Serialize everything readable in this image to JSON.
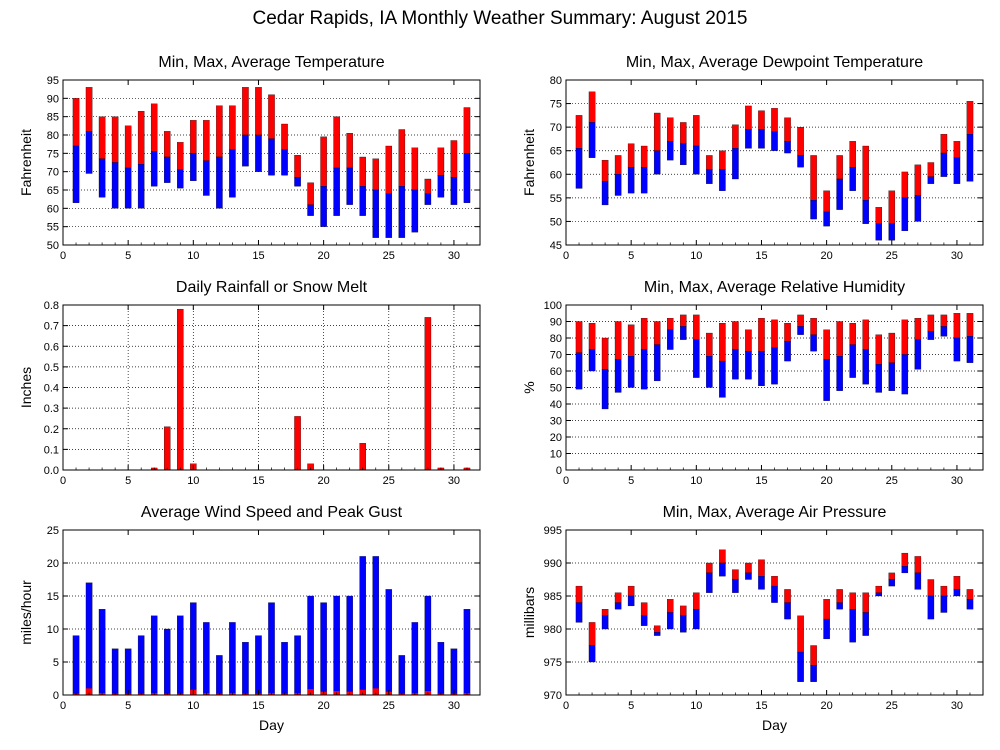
{
  "title": "Cedar Rapids, IA Monthly Weather Summary: August 2015",
  "colors": {
    "red": "#ff0000",
    "blue": "#0000ff",
    "grid": "#000000",
    "background": "#ffffff"
  },
  "chart_data": [
    {
      "id": "temperature",
      "type": "bar",
      "title": "Min, Max, Average Temperature",
      "xlabel": "",
      "ylabel": "Fahrenheit",
      "ylim": [
        50,
        95
      ],
      "yticks": [
        50,
        55,
        60,
        65,
        70,
        75,
        80,
        85,
        90,
        95
      ],
      "xlim": [
        0,
        32
      ],
      "xticks": [
        0,
        5,
        10,
        15,
        20,
        25,
        30
      ],
      "grid": "horizontal",
      "x": [
        1,
        2,
        3,
        4,
        5,
        6,
        7,
        8,
        9,
        10,
        11,
        12,
        13,
        14,
        15,
        16,
        17,
        18,
        19,
        20,
        21,
        22,
        23,
        24,
        25,
        26,
        27,
        28,
        29,
        30,
        31
      ],
      "series": [
        {
          "role": "min",
          "values": [
            61.5,
            69.5,
            63,
            60,
            60,
            60,
            66,
            67,
            65.5,
            67.5,
            63.5,
            60,
            63,
            71.5,
            70,
            69,
            69,
            66,
            58,
            55,
            58,
            61,
            58,
            52,
            52,
            52,
            53.5,
            61,
            63,
            61,
            61.5
          ]
        },
        {
          "role": "avg",
          "values": [
            77,
            81,
            73.5,
            72.5,
            71,
            72,
            75.5,
            74,
            70.5,
            75,
            73,
            74,
            76,
            80,
            80,
            79,
            76,
            68.5,
            61,
            66,
            71,
            71,
            66,
            65,
            64,
            66,
            65,
            64,
            69,
            68.5,
            75
          ]
        },
        {
          "role": "max",
          "values": [
            90,
            93,
            85,
            85,
            82.5,
            86.5,
            88.5,
            81,
            78,
            84,
            84,
            88,
            88,
            93,
            93,
            91,
            83,
            74.5,
            67,
            79.5,
            85,
            80.5,
            74,
            73.5,
            77,
            81.5,
            76.5,
            68,
            76.5,
            78.5,
            87.5
          ]
        }
      ]
    },
    {
      "id": "dewpoint",
      "type": "bar",
      "title": "Min, Max, Average Dewpoint Temperature",
      "xlabel": "",
      "ylabel": "Fahrenheit",
      "ylim": [
        45,
        80
      ],
      "yticks": [
        45,
        50,
        55,
        60,
        65,
        70,
        75,
        80
      ],
      "xlim": [
        0,
        32
      ],
      "xticks": [
        0,
        5,
        10,
        15,
        20,
        25,
        30
      ],
      "grid": "horizontal",
      "x": [
        1,
        2,
        3,
        4,
        5,
        6,
        7,
        8,
        9,
        10,
        11,
        12,
        13,
        14,
        15,
        16,
        17,
        18,
        19,
        20,
        21,
        22,
        23,
        24,
        25,
        26,
        27,
        28,
        29,
        30,
        31
      ],
      "series": [
        {
          "role": "min",
          "values": [
            57,
            63.5,
            53.5,
            55.5,
            56,
            56,
            60,
            63,
            62,
            60,
            58,
            56.5,
            59,
            65.5,
            65.5,
            65,
            64.5,
            61.5,
            50.5,
            49,
            52.5,
            56.5,
            49.5,
            46,
            46,
            48,
            50,
            58,
            59.5,
            58,
            58.5
          ]
        },
        {
          "role": "avg",
          "values": [
            65.5,
            71,
            58.5,
            60,
            61.5,
            61.5,
            65,
            67,
            66.5,
            66,
            61,
            61,
            65.5,
            69.5,
            69.5,
            69,
            67,
            64,
            54.5,
            52,
            59,
            61.5,
            54.5,
            49.5,
            49.5,
            55,
            55.5,
            59.5,
            64.5,
            63.5,
            68.5
          ]
        },
        {
          "role": "max",
          "values": [
            72.5,
            77.5,
            63,
            64,
            66.5,
            66,
            73,
            72,
            71,
            72.5,
            64,
            65,
            70.5,
            74.5,
            73.5,
            74,
            72,
            70,
            64,
            56.5,
            64,
            67,
            66,
            53,
            56.5,
            60.5,
            62,
            62.5,
            68.5,
            67,
            75.5
          ]
        }
      ]
    },
    {
      "id": "rainfall",
      "type": "bar",
      "title": "Daily Rainfall or Snow Melt",
      "xlabel": "",
      "ylabel": "Inches",
      "ylim": [
        0,
        0.8
      ],
      "yticks": [
        0,
        0.1,
        0.2,
        0.3,
        0.4,
        0.5,
        0.6,
        0.7,
        0.8
      ],
      "xlim": [
        0,
        32
      ],
      "xticks": [
        0,
        5,
        10,
        15,
        20,
        25,
        30
      ],
      "grid": "both",
      "x": [
        1,
        2,
        3,
        4,
        5,
        6,
        7,
        8,
        9,
        10,
        11,
        12,
        13,
        14,
        15,
        16,
        17,
        18,
        19,
        20,
        21,
        22,
        23,
        24,
        25,
        26,
        27,
        28,
        29,
        30,
        31
      ],
      "series": [
        {
          "role": "rain",
          "values": [
            0,
            0,
            0,
            0,
            0,
            0,
            0.01,
            0.21,
            0.78,
            0.03,
            0,
            0,
            0,
            0,
            0,
            0,
            0,
            0.26,
            0.03,
            0,
            0,
            0,
            0.13,
            0,
            0,
            0,
            0,
            0.74,
            0.01,
            0,
            0.01
          ]
        }
      ]
    },
    {
      "id": "humidity",
      "type": "bar",
      "title": "Min, Max, Average Relative Humidity",
      "xlabel": "",
      "ylabel": "%",
      "ylim": [
        0,
        100
      ],
      "yticks": [
        0,
        10,
        20,
        30,
        40,
        50,
        60,
        70,
        80,
        90,
        100
      ],
      "xlim": [
        0,
        32
      ],
      "xticks": [
        0,
        5,
        10,
        15,
        20,
        25,
        30
      ],
      "grid": "horizontal",
      "x": [
        1,
        2,
        3,
        4,
        5,
        6,
        7,
        8,
        9,
        10,
        11,
        12,
        13,
        14,
        15,
        16,
        17,
        18,
        19,
        20,
        21,
        22,
        23,
        24,
        25,
        26,
        27,
        28,
        29,
        30,
        31
      ],
      "series": [
        {
          "role": "min",
          "values": [
            49,
            60,
            37,
            47,
            50,
            49,
            54,
            73,
            79,
            56,
            50,
            44,
            55,
            55,
            51,
            52,
            66,
            82,
            72,
            42,
            48,
            56,
            52,
            47,
            48,
            46,
            61,
            79,
            81,
            66,
            65
          ]
        },
        {
          "role": "avg",
          "values": [
            71,
            73,
            61,
            67,
            69,
            73,
            76,
            85,
            87,
            79,
            69,
            66,
            73,
            72,
            72,
            74,
            78,
            87,
            82,
            67,
            69,
            76,
            73,
            64,
            65,
            70,
            79,
            84,
            87,
            80,
            81
          ]
        },
        {
          "role": "max",
          "values": [
            90,
            89,
            80,
            90,
            88,
            92,
            90,
            92,
            94,
            94,
            83,
            89,
            90,
            85,
            92,
            91,
            89,
            94,
            92,
            85,
            90,
            89,
            91,
            82,
            83,
            91,
            92,
            94,
            94,
            95,
            95
          ]
        }
      ]
    },
    {
      "id": "wind",
      "type": "bar",
      "title": "Average Wind Speed and Peak Gust",
      "xlabel": "Day",
      "ylabel": "miles/hour",
      "ylim": [
        0,
        25
      ],
      "yticks": [
        0,
        5,
        10,
        15,
        20,
        25
      ],
      "xlim": [
        0,
        32
      ],
      "xticks": [
        0,
        5,
        10,
        15,
        20,
        25,
        30
      ],
      "grid": "horizontal",
      "x": [
        1,
        2,
        3,
        4,
        5,
        6,
        7,
        8,
        9,
        10,
        11,
        12,
        13,
        14,
        15,
        16,
        17,
        18,
        19,
        20,
        21,
        22,
        23,
        24,
        25,
        26,
        27,
        28,
        29,
        30,
        31
      ],
      "series": [
        {
          "role": "gust",
          "values": [
            9,
            17,
            13,
            7,
            7,
            9,
            12,
            10,
            12,
            14,
            11,
            6,
            11,
            8,
            9,
            14,
            8,
            9,
            15,
            14,
            15,
            15,
            21,
            21,
            16,
            6,
            11,
            15,
            8,
            7,
            13
          ]
        },
        {
          "role": "avg",
          "values": [
            0.2,
            1,
            0.3,
            0.2,
            0.2,
            0.2,
            0.3,
            0.2,
            0.2,
            0.8,
            0.3,
            0.2,
            0.3,
            0.2,
            0.2,
            0.3,
            0.2,
            0.3,
            0.9,
            0.5,
            0.6,
            0.5,
            0.8,
            1,
            0.5,
            0.2,
            0.3,
            0.6,
            0.2,
            0.2,
            0.3
          ]
        }
      ]
    },
    {
      "id": "pressure",
      "type": "bar",
      "title": "Min, Max, Average Air Pressure",
      "xlabel": "Day",
      "ylabel": "millibars",
      "ylim": [
        970,
        995
      ],
      "yticks": [
        970,
        975,
        980,
        985,
        990,
        995
      ],
      "xlim": [
        0,
        32
      ],
      "xticks": [
        0,
        5,
        10,
        15,
        20,
        25,
        30
      ],
      "grid": "horizontal",
      "x": [
        1,
        2,
        3,
        4,
        5,
        6,
        7,
        8,
        9,
        10,
        11,
        12,
        13,
        14,
        15,
        16,
        17,
        18,
        19,
        20,
        21,
        22,
        23,
        24,
        25,
        26,
        27,
        28,
        29,
        30,
        31
      ],
      "series": [
        {
          "role": "min",
          "values": [
            981,
            975,
            980,
            983,
            983.5,
            980.5,
            979,
            980,
            979.5,
            980,
            985.5,
            988,
            985.5,
            987.5,
            986,
            984,
            981.5,
            972,
            972,
            978.5,
            983,
            978,
            979,
            985,
            986.5,
            988.5,
            986,
            981.5,
            982.5,
            985,
            983
          ]
        },
        {
          "role": "avg",
          "values": [
            984,
            977.5,
            982,
            984,
            985,
            982,
            979.5,
            982.5,
            982,
            983,
            988.5,
            990,
            987.5,
            988.5,
            988,
            986.5,
            984,
            976.5,
            974.5,
            981.5,
            984,
            983,
            982.5,
            985.5,
            987.5,
            989.5,
            988.5,
            985,
            985,
            986,
            984.5
          ]
        },
        {
          "role": "max",
          "values": [
            986.5,
            981,
            983,
            985.5,
            986.5,
            984,
            980.5,
            984.5,
            983.5,
            985.5,
            990,
            992,
            989,
            990,
            990.5,
            988,
            986,
            982,
            977.5,
            984.5,
            986,
            985.5,
            985.5,
            986.5,
            988.5,
            991.5,
            991,
            987.5,
            986.5,
            988,
            986
          ]
        }
      ]
    }
  ]
}
